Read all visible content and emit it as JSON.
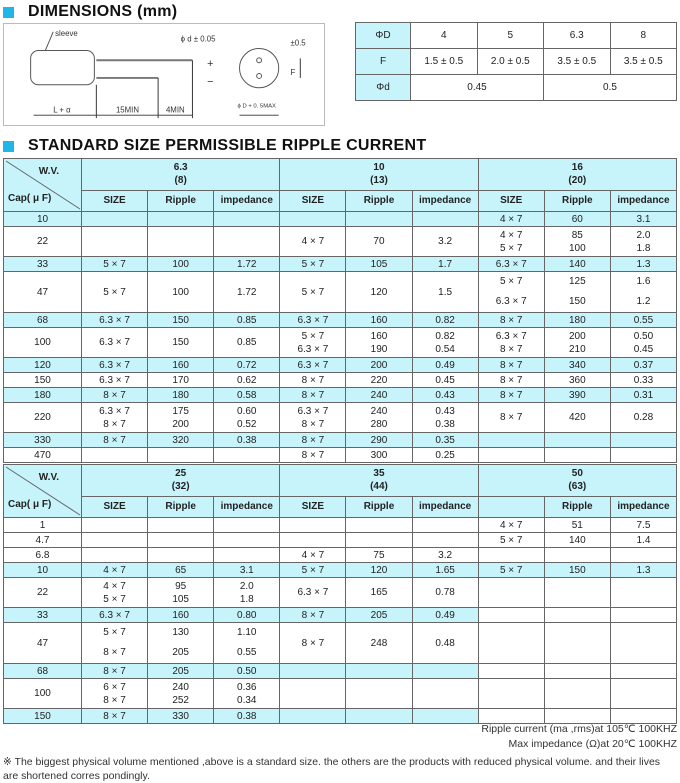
{
  "dimensions": {
    "title": "DIMENSIONS (mm)",
    "diagram": {
      "sleeve": "sleeve",
      "phi_d": "ϕ d ± 0.05",
      "length": "L + α",
      "lead1": "15MIN",
      "lead2": "4MIN",
      "f_tol": "±0.5",
      "f": "F",
      "diam": "ϕ D + 0. 5MAX",
      "plus": "+",
      "minus": "−"
    },
    "table": {
      "rows": [
        {
          "label": "ΦD",
          "values": [
            "4",
            "5",
            "6.3",
            "8"
          ]
        },
        {
          "label": "F",
          "values": [
            "1.5 ± 0.5",
            "2.0 ± 0.5",
            "3.5 ± 0.5",
            "3.5 ± 0.5"
          ]
        },
        {
          "label": "Φd",
          "values": [
            "0.45",
            "0.5"
          ]
        }
      ]
    }
  },
  "ripple": {
    "title": "STANDARD SIZE PERMISSIBLE RIPPLE CURRENT",
    "wv_label": "W.V.",
    "cap_label": "Cap( μ F)",
    "tables": [
      {
        "groups": [
          {
            "wv": "6.3\n(8)",
            "cols": [
              "SIZE",
              "Ripple",
              "impedance"
            ]
          },
          {
            "wv": "10\n(13)",
            "cols": [
              "SIZE",
              "Ripple",
              "impedance"
            ]
          },
          {
            "wv": "16\n(20)",
            "cols": [
              "SIZE",
              "Ripple",
              "impedance"
            ]
          }
        ],
        "rows": [
          {
            "cap": "10",
            "shaded": [
              1,
              1,
              1
            ],
            "g": [
              [
                "",
                "",
                ""
              ],
              [
                "",
                "",
                ""
              ],
              [
                "4 × 7",
                "60",
                "3.1"
              ]
            ]
          },
          {
            "cap": "22",
            "shaded": [
              0,
              0,
              0
            ],
            "g": [
              [
                "",
                "",
                ""
              ],
              [
                "4 × 7",
                "70",
                "3.2"
              ],
              [
                "4 × 7\n5 × 7",
                "85\n100",
                "2.0\n1.8"
              ]
            ]
          },
          {
            "cap": "33",
            "shaded": [
              1,
              1,
              1
            ],
            "g": [
              [
                "5 × 7",
                "100",
                "1.72"
              ],
              [
                "5 × 7",
                "105",
                "1.7"
              ],
              [
                "6.3 × 7",
                "140",
                "1.3"
              ]
            ]
          },
          {
            "cap": "47",
            "shaded": [
              0,
              0,
              0
            ],
            "g": [
              [
                "5 × 7",
                "100",
                "1.72"
              ],
              [
                "5 × 7",
                "120",
                "1.5"
              ],
              [
                "5 × 7\n6.3 × 7",
                "125\n150",
                "1.6\n1.2"
              ]
            ]
          },
          {
            "cap": "68",
            "shaded": [
              1,
              1,
              1
            ],
            "g": [
              [
                "6.3 × 7",
                "150",
                "0.85"
              ],
              [
                "6.3 × 7",
                "160",
                "0.82"
              ],
              [
                "8 × 7",
                "180",
                "0.55"
              ]
            ]
          },
          {
            "cap": "100",
            "shaded": [
              0,
              0,
              0
            ],
            "g": [
              [
                "6.3 × 7",
                "150",
                "0.85"
              ],
              [
                "5 × 7\n6.3 × 7",
                "160\n190",
                "0.82\n0.54"
              ],
              [
                "6.3 × 7\n8 × 7",
                "200\n210",
                "0.50\n0.45"
              ]
            ]
          },
          {
            "cap": "120",
            "shaded": [
              1,
              1,
              1
            ],
            "g": [
              [
                "6.3 × 7",
                "160",
                "0.72"
              ],
              [
                "6.3 × 7",
                "200",
                "0.49"
              ],
              [
                "8 × 7",
                "340",
                "0.37"
              ]
            ]
          },
          {
            "cap": "150",
            "shaded": [
              0,
              0,
              0
            ],
            "g": [
              [
                "6.3 × 7",
                "170",
                "0.62"
              ],
              [
                "8 × 7",
                "220",
                "0.45"
              ],
              [
                "8 × 7",
                "360",
                "0.33"
              ]
            ]
          },
          {
            "cap": "180",
            "shaded": [
              1,
              1,
              1
            ],
            "g": [
              [
                "8 × 7",
                "180",
                "0.58"
              ],
              [
                "8 × 7",
                "240",
                "0.43"
              ],
              [
                "8 × 7",
                "390",
                "0.31"
              ]
            ]
          },
          {
            "cap": "220",
            "shaded": [
              0,
              0,
              0
            ],
            "g": [
              [
                "6.3 × 7\n8 × 7",
                "175\n200",
                "0.60\n0.52"
              ],
              [
                "6.3 × 7\n8 × 7",
                "240\n280",
                "0.43\n0.38"
              ],
              [
                "8 × 7",
                "420",
                "0.28"
              ]
            ]
          },
          {
            "cap": "330",
            "shaded": [
              1,
              1,
              1
            ],
            "g": [
              [
                "8 × 7",
                "320",
                "0.38"
              ],
              [
                "8 × 7",
                "290",
                "0.35"
              ],
              [
                "",
                "",
                ""
              ]
            ]
          },
          {
            "cap": "470",
            "shaded": [
              0,
              0,
              0
            ],
            "g": [
              [
                "",
                "",
                ""
              ],
              [
                "8 × 7",
                "300",
                "0.25"
              ],
              [
                "",
                "",
                ""
              ]
            ]
          }
        ]
      },
      {
        "groups": [
          {
            "wv": "25\n(32)",
            "cols": [
              "SIZE",
              "Ripple",
              "impedance"
            ]
          },
          {
            "wv": "35\n(44)",
            "cols": [
              "SIZE",
              "Ripple",
              "impedance"
            ]
          },
          {
            "wv": "50\n(63)",
            "cols": [
              "",
              "Ripple",
              "impedance"
            ]
          }
        ],
        "rows": [
          {
            "cap": "1",
            "shaded": [
              0,
              0,
              0
            ],
            "g": [
              [
                "",
                "",
                ""
              ],
              [
                "",
                "",
                ""
              ],
              [
                "4 × 7",
                "51",
                "7.5"
              ]
            ]
          },
          {
            "cap": "4.7",
            "shaded": [
              0,
              0,
              0
            ],
            "g": [
              [
                "",
                "",
                ""
              ],
              [
                "",
                "",
                ""
              ],
              [
                "5 × 7",
                "140",
                "1.4"
              ]
            ]
          },
          {
            "cap": "6.8",
            "shaded": [
              0,
              0,
              0
            ],
            "g": [
              [
                "",
                "",
                ""
              ],
              [
                "4 × 7",
                "75",
                "3.2"
              ],
              [
                "",
                "",
                ""
              ]
            ]
          },
          {
            "cap": "10",
            "shaded": [
              1,
              1,
              1
            ],
            "g": [
              [
                "4 × 7",
                "65",
                "3.1"
              ],
              [
                "5 × 7",
                "120",
                "1.65"
              ],
              [
                "5 × 7",
                "150",
                "1.3"
              ]
            ]
          },
          {
            "cap": "22",
            "shaded": [
              0,
              0,
              0
            ],
            "g": [
              [
                "4 × 7\n5 × 7",
                "95\n105",
                "2.0\n1.8"
              ],
              [
                "6.3 × 7",
                "165",
                "0.78"
              ],
              [
                "",
                "",
                ""
              ]
            ]
          },
          {
            "cap": "33",
            "shaded": [
              1,
              1,
              0
            ],
            "g": [
              [
                "6.3 × 7",
                "160",
                "0.80"
              ],
              [
                "8 × 7",
                "205",
                "0.49"
              ],
              [
                "",
                "",
                ""
              ]
            ]
          },
          {
            "cap": "47",
            "shaded": [
              0,
              0,
              0
            ],
            "g": [
              [
                "5 × 7\n8 × 7",
                "130\n205",
                "1.10\n0.55"
              ],
              [
                "8 × 7",
                "248",
                "0.48"
              ],
              [
                "",
                "",
                ""
              ]
            ]
          },
          {
            "cap": "68",
            "shaded": [
              1,
              1,
              0
            ],
            "g": [
              [
                "8 × 7",
                "205",
                "0.50"
              ],
              [
                "",
                "",
                ""
              ],
              [
                "",
                "",
                ""
              ]
            ]
          },
          {
            "cap": "100",
            "shaded": [
              0,
              0,
              0
            ],
            "g": [
              [
                "6 × 7\n8 × 7",
                "240\n252",
                "0.36\n0.34"
              ],
              [
                "",
                "",
                ""
              ],
              [
                "",
                "",
                ""
              ]
            ]
          },
          {
            "cap": "150",
            "shaded": [
              1,
              1,
              0
            ],
            "g": [
              [
                "8 × 7",
                "330",
                "0.38"
              ],
              [
                "",
                "",
                ""
              ],
              [
                "",
                "",
                ""
              ]
            ]
          }
        ]
      }
    ]
  },
  "notes": {
    "ripple_cond": "Ripple current (ma ,rms)at 105℃ 100KHZ",
    "imp_cond": "Max impedance (Ω)at 20℃ 100KHZ",
    "footnote": "※ The biggest physical volume mentioned ,above is a standard size. the others are the products with reduced physical volume. and their lives are shortened corres pondingly."
  },
  "colors": {
    "accent": "#1fb6e8",
    "shade": "#c7f4fb"
  }
}
